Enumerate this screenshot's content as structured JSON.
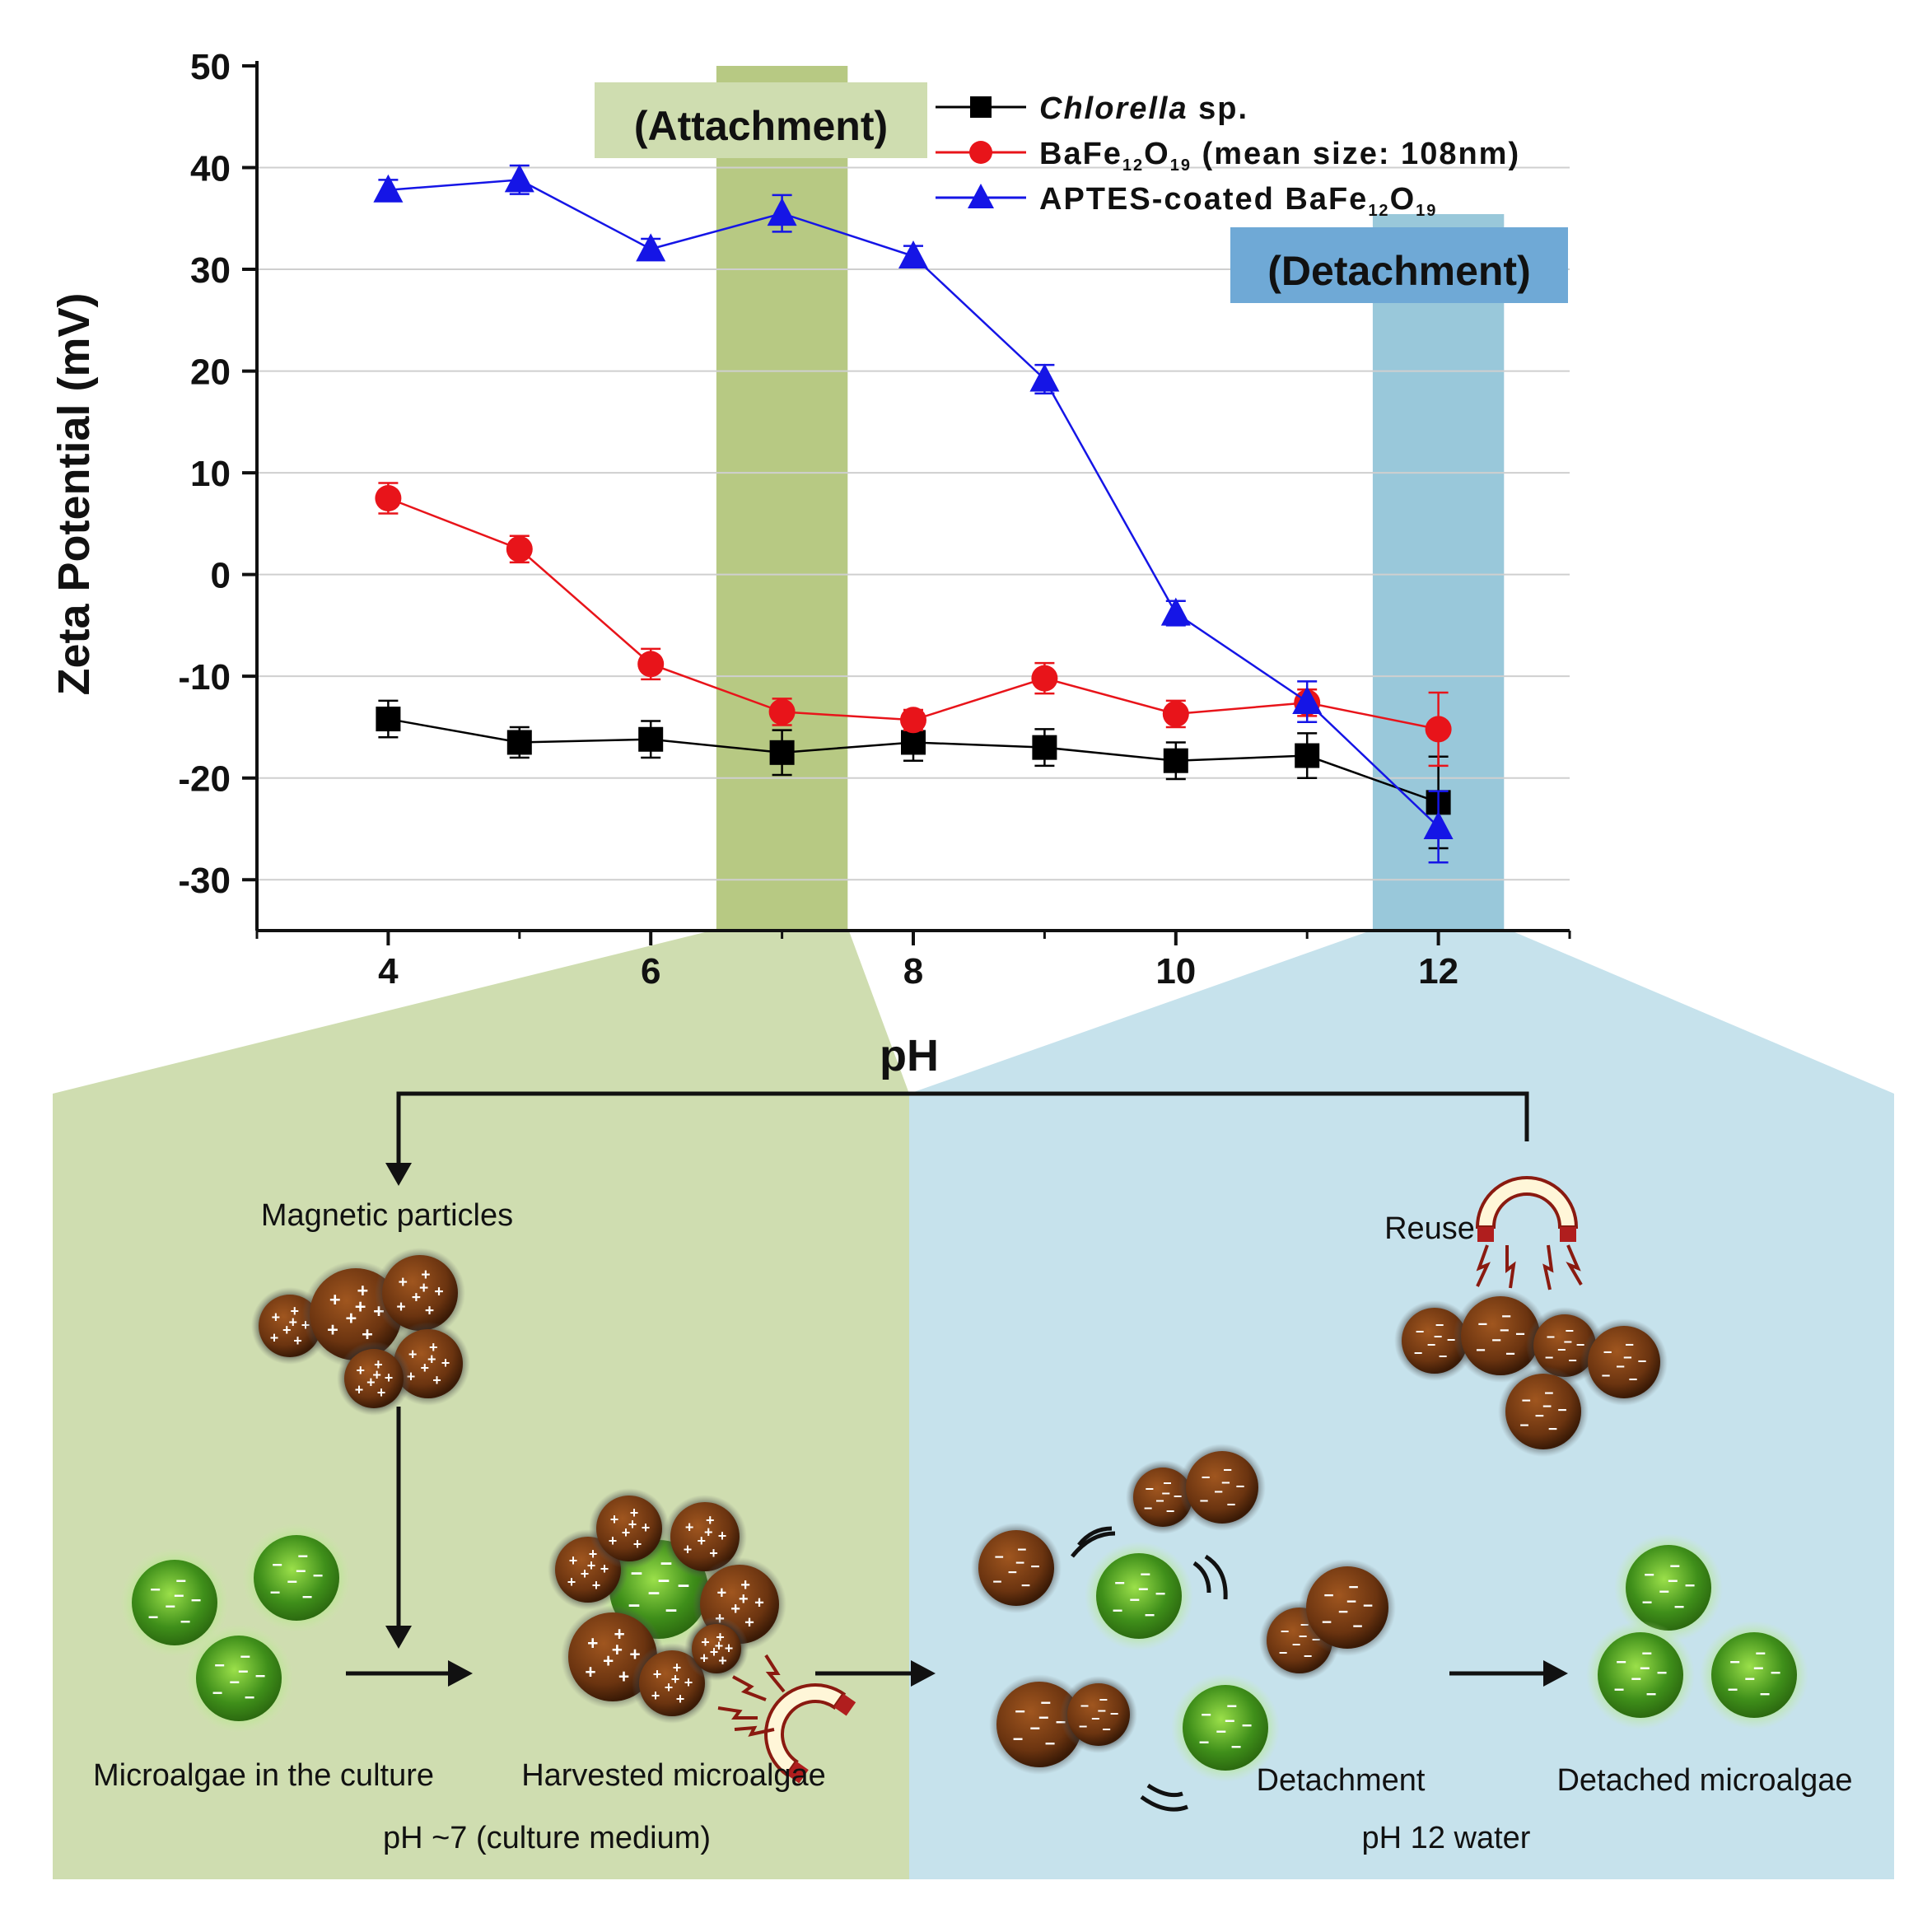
{
  "chart_data": {
    "type": "line",
    "xlabel": "pH",
    "ylabel": "Zeta Potential (mV)",
    "xlim": [
      3,
      13
    ],
    "ylim": [
      -35,
      50
    ],
    "x_ticks": [
      4,
      6,
      8,
      10,
      12
    ],
    "y_ticks": [
      50,
      40,
      30,
      20,
      10,
      0,
      -10,
      -20,
      -30
    ],
    "grid": true,
    "legend_position": "top-right",
    "x": [
      4,
      5,
      6,
      7,
      8,
      9,
      10,
      11,
      12
    ],
    "series": [
      {
        "name": "Chlorella sp.",
        "name_italic": "Chlorella",
        "name_rest": " sp.",
        "marker": "square",
        "color": "#000000",
        "values": [
          -14.2,
          -16.5,
          -16.2,
          -17.5,
          -16.5,
          -17.0,
          -18.3,
          -17.8,
          -22.4
        ],
        "errors": [
          1.8,
          1.5,
          1.8,
          2.2,
          1.8,
          1.8,
          1.8,
          2.2,
          4.5
        ]
      },
      {
        "name": "BaFe12O19 (mean size: 108nm)",
        "name_parts": [
          "BaFe",
          "12",
          "O",
          "19",
          " (mean size: 108nm)"
        ],
        "marker": "circle",
        "color": "#e8141a",
        "values": [
          7.5,
          2.5,
          -8.8,
          -13.5,
          -14.3,
          -10.2,
          -13.7,
          -12.6,
          -15.2
        ],
        "errors": [
          1.5,
          1.3,
          1.5,
          1.3,
          1.0,
          1.5,
          1.3,
          1.3,
          3.6
        ]
      },
      {
        "name": "APTES-coated BaFe12O19",
        "name_parts": [
          "APTES-coated BaFe",
          "12",
          "O",
          "19",
          ""
        ],
        "marker": "triangle",
        "color": "#1515e6",
        "values": [
          37.8,
          38.8,
          32.0,
          35.5,
          31.3,
          19.2,
          -3.8,
          -12.5,
          -24.8
        ],
        "errors": [
          1.0,
          1.4,
          1.0,
          1.8,
          1.0,
          1.4,
          1.2,
          2.0,
          3.5
        ]
      }
    ],
    "annotations": [
      {
        "text": "(Attachment)",
        "x_range": [
          6.5,
          7.5
        ],
        "color": "#aabf6d"
      },
      {
        "text": "(Detachment)",
        "x_range": [
          11.5,
          12.5
        ],
        "color": "#8ec2d6"
      }
    ]
  },
  "diagram": {
    "attachment_bg": "#cfddb0",
    "detachment_bg": "#c6e2ec",
    "labels": {
      "magnetic_particles": "Magnetic particles",
      "reuse": "Reuse",
      "microalgae_in_culture": "Microalgae in the culture",
      "harvested_microalgae": "Harvested microalgae",
      "detachment": "Detachment",
      "detached_microalgae": "Detached microalgae",
      "ph7_condition": "pH ~7 (culture medium)",
      "ph12_condition": "pH 12 water"
    },
    "plus_sign": "+",
    "minus_sign": "−"
  }
}
